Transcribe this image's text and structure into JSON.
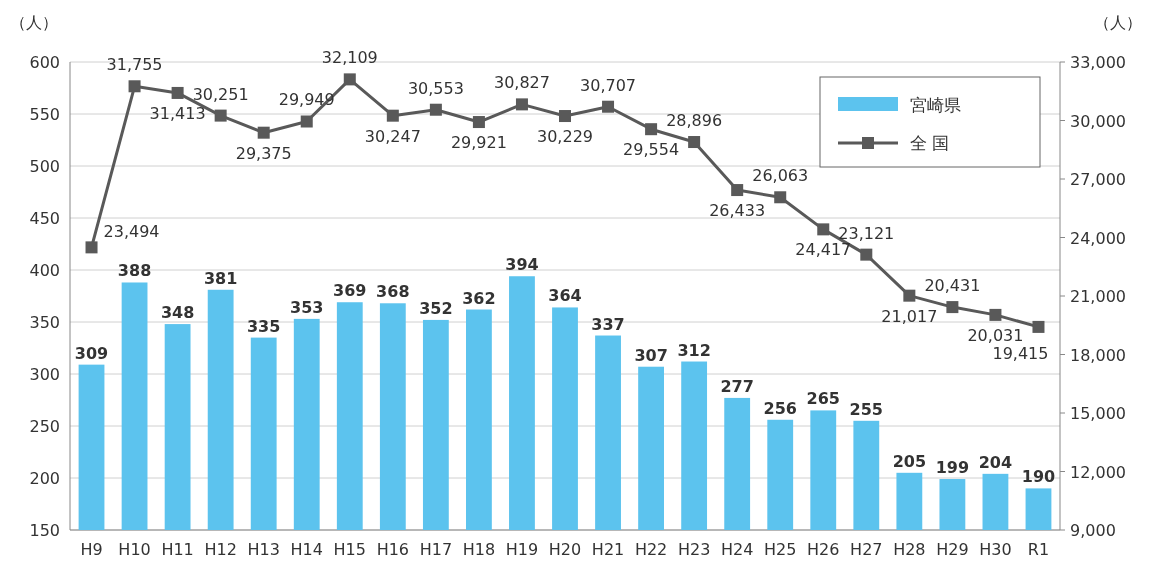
{
  "chart_data": {
    "type": "bar",
    "ylabel": "（人）",
    "y2label": "（人）",
    "categories": [
      "H9",
      "H10",
      "H11",
      "H12",
      "H13",
      "H14",
      "H15",
      "H16",
      "H17",
      "H18",
      "H19",
      "H20",
      "H21",
      "H22",
      "H23",
      "H24",
      "H25",
      "H26",
      "H27",
      "H28",
      "H29",
      "H30",
      "R1"
    ],
    "series": [
      {
        "name": "宮崎県",
        "color": "#5cc3ee",
        "values": [
          309,
          388,
          348,
          381,
          335,
          353,
          369,
          368,
          352,
          362,
          394,
          364,
          337,
          307,
          312,
          277,
          256,
          265,
          255,
          205,
          199,
          204,
          190
        ]
      },
      {
        "name": "全 国",
        "type": "line",
        "axis": "y2",
        "color": "#595959",
        "values": [
          23494,
          31755,
          31413,
          30251,
          29375,
          29949,
          32109,
          30247,
          30553,
          29921,
          30827,
          30229,
          30707,
          29554,
          28896,
          26433,
          26063,
          24417,
          23121,
          21017,
          20431,
          20031,
          19415
        ],
        "value_labels": [
          "23,494",
          "31,755",
          "31,413",
          "30,251",
          "29,375",
          "29,949",
          "32,109",
          "30,247",
          "30,553",
          "29,921",
          "30,827",
          "30,229",
          "30,707",
          "29,554",
          "28,896",
          "26,433",
          "26,063",
          "24,417",
          "23,121",
          "21,017",
          "20,431",
          "20,031",
          "19,415"
        ]
      }
    ],
    "data_labels": true,
    "ylim": [
      150,
      600
    ],
    "yticks": [
      150,
      200,
      250,
      300,
      350,
      400,
      450,
      500,
      550,
      600
    ],
    "y2lim": [
      9000,
      33000
    ],
    "y2ticks": [
      {
        "value": 9000,
        "label": "9,000"
      },
      {
        "value": 12000,
        "label": "12,000"
      },
      {
        "value": 15000,
        "label": "15,000"
      },
      {
        "value": 18000,
        "label": "18,000"
      },
      {
        "value": 21000,
        "label": "21,000"
      },
      {
        "value": 24000,
        "label": "24,000"
      },
      {
        "value": 27000,
        "label": "27,000"
      },
      {
        "value": 30000,
        "label": "30,000"
      },
      {
        "value": 33000,
        "label": "33,000"
      }
    ],
    "grid": "y",
    "legend": "top right",
    "marker": "square",
    "line_style": "solid"
  }
}
